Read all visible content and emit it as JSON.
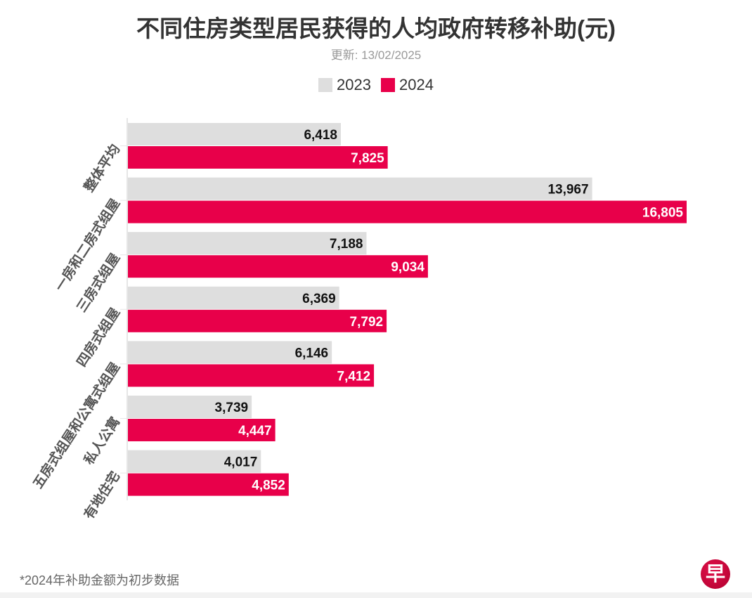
{
  "chart_data": {
    "type": "bar",
    "orientation": "horizontal",
    "title": "不同住房类型居民获得的人均政府转移补助(元)",
    "subtitle": "更新: 13/02/2025",
    "categories": [
      "整体平均",
      "一房和二房式组屋",
      "三房式组屋",
      "四房式组屋",
      "五房式组屋和公寓式组屋",
      "私人公寓",
      "有地住宅"
    ],
    "series": [
      {
        "name": "2023",
        "color": "#dedede",
        "values": [
          6418,
          13967,
          7188,
          6369,
          6146,
          3739,
          4017
        ]
      },
      {
        "name": "2024",
        "color": "#e8004a",
        "values": [
          7825,
          16805,
          9034,
          7792,
          7412,
          4447,
          4852
        ]
      }
    ],
    "xlim": [
      0,
      16805
    ],
    "grid": false,
    "legend": "top",
    "footnote": "*2024年补助金额为初步数据"
  },
  "logo_text": "早"
}
